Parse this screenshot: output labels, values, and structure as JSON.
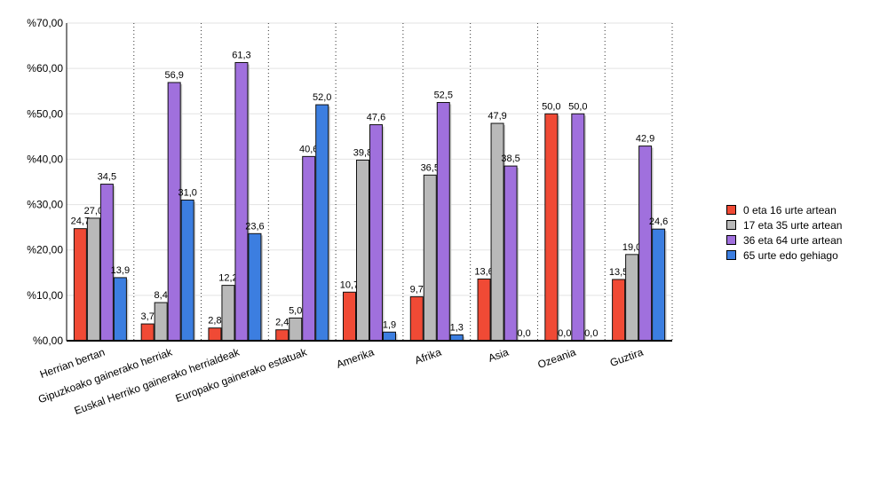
{
  "chart_data": {
    "type": "bar",
    "categories": [
      "Herrian bertan",
      "Gipuzkoako gainerako herriak",
      "Euskal Herriko gainerako herrialdeak",
      "Europako gainerako estatuak",
      "Amerika",
      "Afrika",
      "Asia",
      "Ozeania",
      "Guztira"
    ],
    "series": [
      {
        "name": "0 eta 16 urte artean",
        "color": "#f04a35",
        "values": [
          24.7,
          3.7,
          2.8,
          2.4,
          10.7,
          9.7,
          13.6,
          50.0,
          13.5
        ],
        "labels": [
          "24,7",
          "3,7",
          "2,8",
          "2,4",
          "10,7",
          "9,7",
          "13,6",
          "50,0",
          "13,5"
        ]
      },
      {
        "name": "17 eta 35 urte artean",
        "color": "#b9b9b9",
        "values": [
          27.0,
          8.4,
          12.2,
          5.0,
          39.8,
          36.5,
          47.9,
          0.0,
          19.0
        ],
        "labels": [
          "27,0",
          "8,4",
          "12,2",
          "5,0",
          "39,8",
          "36,5",
          "47,9",
          "0,0",
          "19,0"
        ]
      },
      {
        "name": "36 eta 64 urte artean",
        "color": "#a070dd",
        "values": [
          34.5,
          56.9,
          61.3,
          40.6,
          47.6,
          52.5,
          38.5,
          50.0,
          42.9
        ],
        "labels": [
          "34,5",
          "56,9",
          "61,3",
          "40,6",
          "47,6",
          "52,5",
          "38,5",
          "50,0",
          "42,9"
        ]
      },
      {
        "name": "65 urte edo gehiago",
        "color": "#3c7ee0",
        "values": [
          13.9,
          31.0,
          23.6,
          52.0,
          1.9,
          1.3,
          0.0,
          0.0,
          24.6
        ],
        "labels": [
          "13,9",
          "31,0",
          "23,6",
          "52,0",
          "1,9",
          "1,3",
          "0,0",
          "0,0",
          "24,6"
        ]
      }
    ],
    "ylim": [
      0,
      70
    ],
    "yticks": [
      0,
      10,
      20,
      30,
      40,
      50,
      60,
      70
    ],
    "ytick_labels": [
      "%0,00",
      "%10,00",
      "%20,00",
      "%30,00",
      "%40,00",
      "%50,00",
      "%60,00",
      "%70,00"
    ],
    "grid": true,
    "legend_position": "right",
    "title": "",
    "xlabel": "",
    "ylabel": ""
  }
}
